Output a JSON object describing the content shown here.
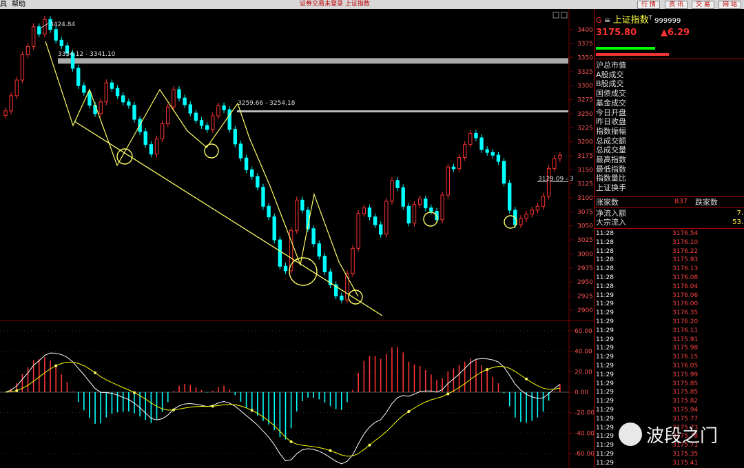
{
  "menu": {
    "left_partial": "具",
    "help": "帮助",
    "center_text": "证券交易未登录  上证指数",
    "buttons": [
      "行 情",
      "资 讯",
      "交 易",
      "网 站"
    ]
  },
  "colors": {
    "up": "#ff3333",
    "down": "#00ffff",
    "bg": "#000000",
    "grid": "#7a0000",
    "trend": "#ffff66"
  },
  "chart_data": [
    {
      "type": "candlestick",
      "y_ticks": [
        2900,
        2925,
        2950,
        2975,
        3000,
        3025,
        3050,
        3075,
        3100,
        3125,
        3150,
        3175,
        3200,
        3225,
        3250,
        3275,
        3300,
        3325,
        3350,
        3375,
        3400
      ],
      "ylim": [
        2885,
        3433
      ],
      "annotations": [
        "3424.84",
        "3354.12 - 3341.10",
        "3259.66 - 3254.18",
        "3129.09 - 3"
      ],
      "closes": [
        3255,
        3282,
        3310,
        3355,
        3370,
        3405,
        3392,
        3418,
        3400,
        3381,
        3371,
        3358,
        3331,
        3300,
        3288,
        3265,
        3250,
        3271,
        3305,
        3295,
        3282,
        3271,
        3265,
        3240,
        3218,
        3195,
        3178,
        3205,
        3232,
        3262,
        3293,
        3278,
        3266,
        3251,
        3238,
        3229,
        3222,
        3246,
        3264,
        3257,
        3222,
        3196,
        3171,
        3150,
        3138,
        3119,
        3085,
        3066,
        3025,
        2978,
        2970,
        3042,
        3096,
        3078,
        3045,
        3018,
        2996,
        2968,
        2945,
        2925,
        2918,
        2965,
        3010,
        3072,
        3082,
        3066,
        3052,
        3035,
        3094,
        3131,
        3118,
        3085,
        3055,
        3088,
        3098,
        3082,
        3076,
        3061,
        3105,
        3155,
        3152,
        3172,
        3195,
        3215,
        3207,
        3186,
        3181,
        3176,
        3165,
        3126,
        3078,
        3052,
        3063,
        3071,
        3078,
        3085,
        3103,
        3152,
        3170,
        3176
      ]
    },
    {
      "type": "macd",
      "y_ticks": [
        60,
        40,
        20,
        0,
        -20,
        -40,
        -60
      ],
      "ylim": [
        -68,
        68
      ]
    }
  ],
  "right_panel": {
    "header": {
      "g": "G",
      "icon": "≡",
      "name": "上证指数",
      "superscript": "T",
      "code": "999999"
    },
    "price": "3175.80",
    "change": "▲6.29",
    "stats": [
      "沪总市值",
      "A股成交",
      "B股成交",
      "国债成交",
      "基金成交",
      "今日开盘",
      "昨日收盘",
      "指数振幅",
      "总成交额",
      "总成交量",
      "最高指数",
      "最低指数",
      "指数量比",
      "上证换手"
    ],
    "up_label": "涨家数",
    "up_count": "837",
    "down_label": "跌家数",
    "netflow_label": "净流入额",
    "netflow_value": "7.",
    "bigflow_label": "大宗流入",
    "bigflow_value": "53.",
    "ticks": [
      [
        "11:28",
        "3176.54"
      ],
      [
        "11:28",
        "3176.10"
      ],
      [
        "11:28",
        "3176.22"
      ],
      [
        "11:28",
        "3175.93"
      ],
      [
        "11:28",
        "3176.13"
      ],
      [
        "11:28",
        "3176.08"
      ],
      [
        "11:28",
        "3176.04"
      ],
      [
        "11:29",
        "3176.06"
      ],
      [
        "11:29",
        "3176.00"
      ],
      [
        "11:29",
        "3176.35"
      ],
      [
        "11:29",
        "3176.20"
      ],
      [
        "11:29",
        "3176.11"
      ],
      [
        "11:29",
        "3175.91"
      ],
      [
        "11:29",
        "3175.98"
      ],
      [
        "11:29",
        "3176.15"
      ],
      [
        "11:29",
        "3176.05"
      ],
      [
        "11:29",
        "3175.99"
      ],
      [
        "11:29",
        "3175.85"
      ],
      [
        "11:29",
        "3175.85"
      ],
      [
        "11:29",
        "3175.82"
      ],
      [
        "11:29",
        "3175.94"
      ],
      [
        "11:29",
        "3175.77"
      ],
      [
        "11:29",
        "3175.73"
      ],
      [
        "11:29",
        "3175.78"
      ],
      [
        "11:29",
        "3175.71"
      ],
      [
        "11:29",
        "3175.35"
      ],
      [
        "11:29",
        "3175.41"
      ]
    ]
  },
  "watermark": {
    "text": "波段之门"
  }
}
